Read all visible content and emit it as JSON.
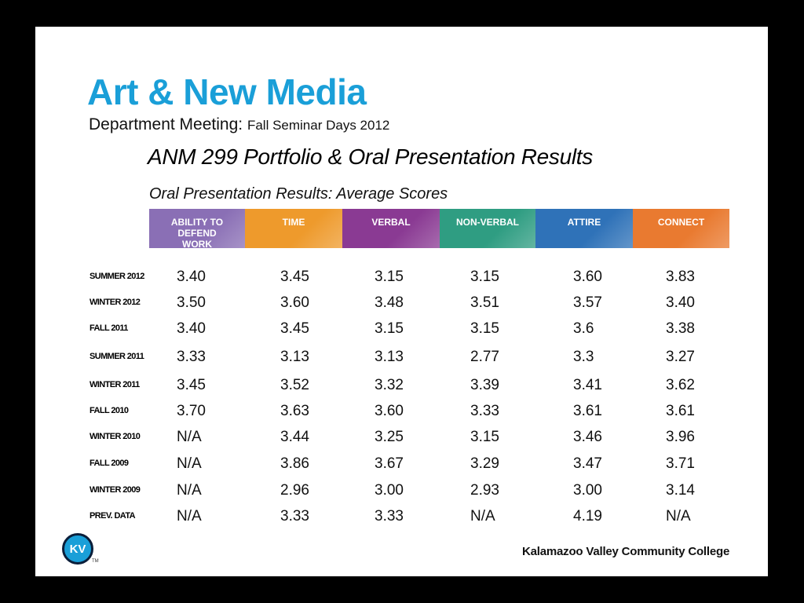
{
  "title": "Art & New Media",
  "subtitle": {
    "main": "Department Meeting:",
    "detail": "Fall Seminar Days 2012"
  },
  "section_title": "ANM 299 Portfolio & Oral Presentation Results",
  "table_caption": "Oral Presentation Results: Average Scores",
  "columns": [
    {
      "label": "ABILITY TO DEFEND WORK",
      "color": "#8a6fb5"
    },
    {
      "label": "TIME",
      "color": "#ee9a2c"
    },
    {
      "label": "VERBAL",
      "color": "#8a3a93"
    },
    {
      "label": "NON-VERBAL",
      "color": "#2f9d82"
    },
    {
      "label": "ATTIRE",
      "color": "#2f72b8"
    },
    {
      "label": "CONNECT",
      "color": "#e97a30"
    }
  ],
  "rows": [
    {
      "label": "SUMMER 2012",
      "values": [
        "3.40",
        "3.45",
        "3.15",
        "3.15",
        "3.60",
        "3.83"
      ]
    },
    {
      "label": "WINTER 2012",
      "values": [
        "3.50",
        "3.60",
        "3.48",
        "3.51",
        "3.57",
        "3.40"
      ]
    },
    {
      "label": "FALL 2011",
      "values": [
        "3.40",
        "3.45",
        "3.15",
        "3.15",
        "3.6",
        "3.38"
      ]
    },
    {
      "label": "SUMMER 2011",
      "values": [
        "3.33",
        "3.13",
        "3.13",
        "2.77",
        "3.3",
        "3.27"
      ]
    },
    {
      "label": "WINTER 2011",
      "values": [
        "3.45",
        "3.52",
        "3.32",
        "3.39",
        "3.41",
        "3.62"
      ]
    },
    {
      "label": "FALL 2010",
      "values": [
        "3.70",
        "3.63",
        "3.60",
        "3.33",
        "3.61",
        "3.61"
      ]
    },
    {
      "label": "WINTER 2010",
      "values": [
        "N/A",
        "3.44",
        "3.25",
        "3.15",
        "3.46",
        "3.96"
      ]
    },
    {
      "label": "FALL 2009",
      "values": [
        "N/A",
        "3.86",
        "3.67",
        "3.29",
        "3.47",
        "3.71"
      ]
    },
    {
      "label": "WINTER 2009",
      "values": [
        "N/A",
        "2.96",
        "3.00",
        "2.93",
        "3.00",
        "3.14"
      ]
    },
    {
      "label": "PREV. DATA",
      "values": [
        "N/A",
        "3.33",
        "3.33",
        "N/A",
        "4.19",
        "N/A"
      ]
    }
  ],
  "logo": {
    "text": "KV",
    "tm": "TM"
  },
  "college_name": "Kalamazoo Valley Community College"
}
